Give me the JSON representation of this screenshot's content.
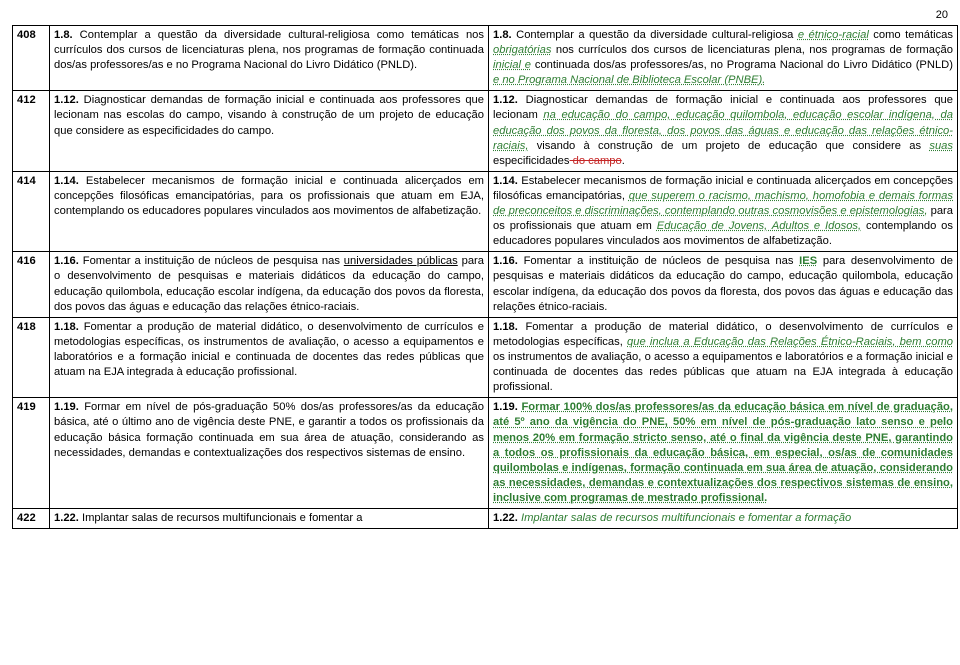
{
  "page_number": "20",
  "rows": [
    {
      "num": "408",
      "left": {
        "bold": "1.8.",
        "body": " Contemplar a questão da diversidade cultural-religiosa como temáticas nos currículos dos cursos de licenciaturas plena, nos programas de formação continuada dos/as professores/as e no Programa Nacional do Livro Didático (PNLD)."
      },
      "right": {
        "bold": "1.8.",
        "a": " Contemplar a questão da diversidade cultural-religiosa ",
        "g1": "e étnico-racial",
        "b": " como temáticas ",
        "g2": "obrigatórias",
        "c": " nos currículos dos cursos de licenciaturas plena, nos programas de formação ",
        "g3": "inicial e",
        "d": " continuada dos/as professores/as, no Programa Nacional do Livro Didático (PNLD) ",
        "g4": "e no Programa Nacional de Biblioteca Escolar (PNBE)."
      }
    },
    {
      "num": "412",
      "left": {
        "bold": "1.12.",
        "body": " Diagnosticar demandas de formação inicial e continuada aos professores que lecionam nas escolas do campo, visando à construção de um projeto de educação que considere as especificidades do campo."
      },
      "right": {
        "bold": "1.12.",
        "a": " Diagnosticar demandas de formação inicial e continuada aos professores que lecionam ",
        "g1": "na educação do campo, educação quilombola, educação escolar indígena, da educação dos povos da floresta, dos povos das águas e educação das relações étnico-raciais,",
        "b": " visando à construção de um projeto de educação que considere as ",
        "g2": "suas",
        "c": " especificidades",
        "strike": " do campo",
        "d": "."
      }
    },
    {
      "num": "414",
      "left": {
        "bold": "1.14.",
        "body": " Estabelecer mecanismos de formação inicial e continuada alicerçados em concepções filosóficas emancipatórias, para os profissionais que atuam em EJA, contemplando os educadores populares vinculados aos movimentos de alfabetização."
      },
      "right": {
        "bold": "1.14.",
        "a": " Estabelecer mecanismos de formação inicial e continuada alicerçados em concepções filosóficas emancipatórias, ",
        "g1": "que superem o racismo, machismo, homofobia e demais formas de preconceitos e discriminações, contemplando outras cosmovisões e epistemologias,",
        "b": " para os profissionais que atuam em ",
        "g2": "Educação de Jovens, Adultos e Idosos,",
        "c": " contemplando os educadores populares vinculados aos movimentos de alfabetização."
      }
    },
    {
      "num": "416",
      "left": {
        "bold": "1.16.",
        "a": " Fomentar a instituição de núcleos de pesquisa nas ",
        "u": "universidades públicas",
        "b": " para o desenvolvimento de pesquisas e materiais didáticos da educação do campo, educação quilombola, educação escolar indígena, da educação dos povos da floresta, dos povos das águas e educação das relações étnico-raciais."
      },
      "right": {
        "bold": "1.16.",
        "a": " Fomentar a instituição de núcleos de pesquisa nas ",
        "gb": "IES",
        "b": " para desenvolvimento de pesquisas e materiais didáticos da educação do campo, educação quilombola, educação escolar indígena, da educação dos povos da floresta, dos povos das águas e educação das relações étnico-raciais."
      }
    },
    {
      "num": "418",
      "left": {
        "bold": "1.18.",
        "body": " Fomentar a produção de material didático, o desenvolvimento de currículos e metodologias específicas, os instrumentos de avaliação, o acesso a equipamentos e laboratórios e a formação inicial e continuada de docentes das redes públicas que atuam na EJA integrada à educação profissional."
      },
      "right": {
        "bold": "1.18.",
        "a": " Fomentar a produção de material didático, o desenvolvimento de currículos e metodologias específicas, ",
        "g1": "que inclua a Educação das Relações Étnico-Raciais, bem como",
        "b": " os instrumentos de avaliação, o acesso a equipamentos e laboratórios e a formação inicial e continuada de docentes das redes públicas que atuam na EJA integrada à educação profissional."
      }
    },
    {
      "num": "419",
      "left": {
        "bold": "1.19.",
        "body": " Formar em nível de pós-graduação 50% dos/as professores/as da educação básica, até o último ano de vigência deste PNE, e garantir a todos os profissionais da educação básica formação continuada em sua área de atuação, considerando as necessidades, demandas e contextualizações dos respectivos sistemas de ensino."
      },
      "right": {
        "bold": "1.19.",
        "a": " ",
        "gb": "Formar 100% dos/as professores/as da educação básica em nível de graduação, até 5º ano da vigência do PNE, 50% em nível de pós-graduação lato senso e pelo menos 20% em formação stricto senso, até o final da vigência deste PNE, garantindo a todos os profissionais da educação básica, em especial, os/as de comunidades quilombolas e indígenas, formação continuada em sua área de atuação, considerando as necessidades, demandas e contextualizações dos respectivos sistemas de ensino, inclusive com programas de mestrado profissional."
      }
    },
    {
      "num": "422",
      "left": {
        "bold": "1.22.",
        "body": " Implantar salas de recursos multifuncionais e fomentar a"
      },
      "right": {
        "bold": "1.22.",
        "body": " Implantar salas de recursos multifuncionais e fomentar a formação"
      }
    }
  ]
}
